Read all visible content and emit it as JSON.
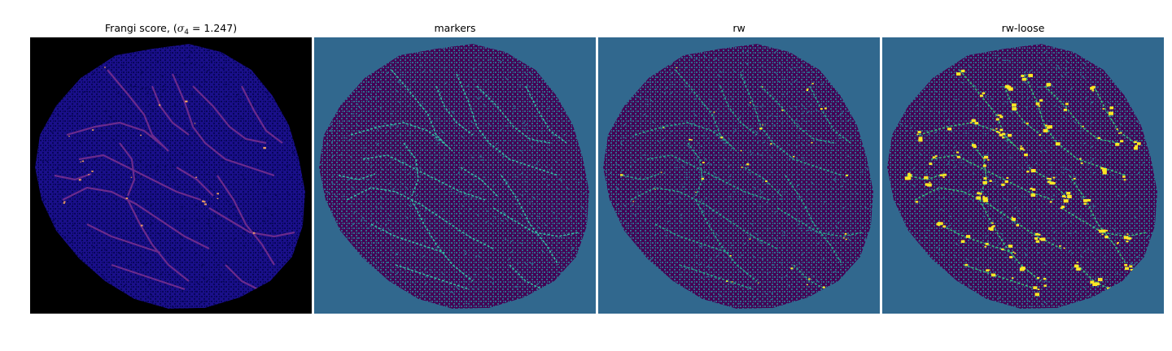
{
  "figure": {
    "panels": [
      {
        "id": "frangi",
        "title_prefix": "Frangi score, (",
        "title_sigma": "σ",
        "title_sub": "4",
        "title_suffix": " = 1.247)",
        "colors": {
          "background": "#000000",
          "tissue": "#1a0f8a",
          "texture": "#07065a",
          "vessel": "#6b2a8c",
          "highlight": "#f0a060"
        }
      },
      {
        "id": "markers",
        "title": "markers",
        "colors": {
          "background": "#31688e",
          "tissue": "#440154",
          "texture": "#2f6b8e",
          "vessel": "#35b8a0",
          "highlight": "#35b8a0"
        }
      },
      {
        "id": "rw",
        "title": "rw",
        "colors": {
          "background": "#31688e",
          "tissue": "#440154",
          "texture": "#2f6b8e",
          "vessel": "#2aa08a",
          "highlight": "#fde725"
        }
      },
      {
        "id": "rw-loose",
        "title": "rw-loose",
        "colors": {
          "background": "#31688e",
          "tissue": "#440154",
          "texture": "#2f6b8e",
          "vessel": "#35b779",
          "highlight": "#fde725"
        }
      }
    ]
  }
}
